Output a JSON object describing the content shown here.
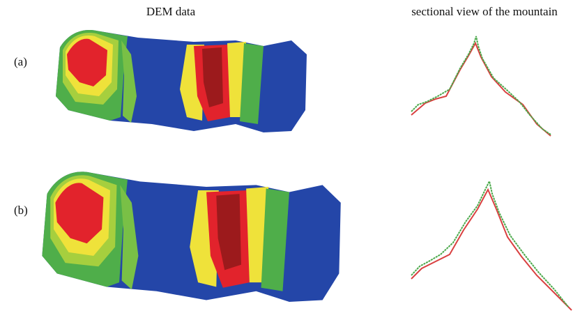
{
  "column_headers": [
    "DEM data",
    "sectional view of the mountain"
  ],
  "row_labels": [
    "(a)",
    "(b)"
  ]
}
